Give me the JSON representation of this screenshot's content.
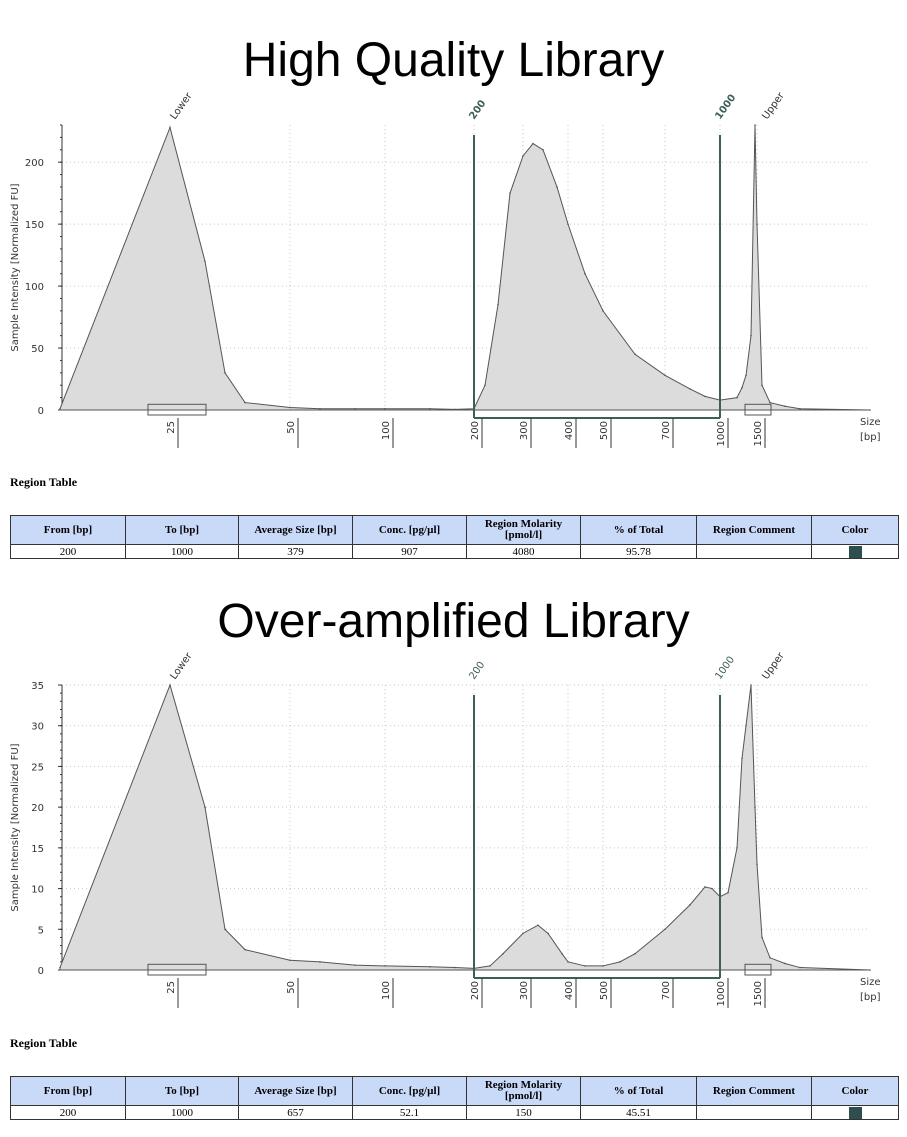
{
  "chart_data": [
    {
      "type": "area",
      "title": "High Quality Library",
      "ylabel": "Sample Intensity [Normalized FU]",
      "xlabel": "Size\n[bp]",
      "x_unit_top": "Size",
      "x_unit_bottom": "[bp]",
      "yticks": [
        0,
        50,
        100,
        150,
        200
      ],
      "ylim": [
        0,
        230
      ],
      "xticks": [
        "25",
        "50",
        "100",
        "200",
        "300",
        "400",
        "500",
        "700",
        "1000",
        "1500"
      ],
      "markers": [
        {
          "label": "Lower",
          "bp": "25"
        },
        {
          "label": "200",
          "bp": "200"
        },
        {
          "label": "1000",
          "bp": "1000"
        },
        {
          "label": "Upper",
          "bp": "1500"
        }
      ],
      "region": {
        "from_bp": 200,
        "to_bp": 1000
      },
      "series": [
        {
          "x": [
            "20",
            "25",
            "30",
            "35",
            "40",
            "50",
            "60",
            "80",
            "100",
            "150",
            "180",
            "200",
            "220",
            "250",
            "270",
            "300",
            "320",
            "340",
            "370",
            "400",
            "450",
            "500",
            "600",
            "700",
            "800",
            "900",
            "1000",
            "1100",
            "1200",
            "1300",
            "1400",
            "1450",
            "1500",
            "1550",
            "1600",
            "1700",
            "1800",
            "2000"
          ],
          "y": [
            1,
            228,
            120,
            30,
            6,
            2,
            1,
            1,
            1,
            1,
            0.5,
            1,
            20,
            85,
            175,
            205,
            215,
            210,
            180,
            150,
            110,
            80,
            45,
            28,
            17,
            11,
            8,
            10,
            18,
            28,
            60,
            230,
            150,
            20,
            6,
            3,
            1,
            0
          ]
        }
      ]
    },
    {
      "type": "area",
      "title": "Over-amplified Library",
      "ylabel": "Sample Intensity [Normalized FU]",
      "xlabel": "Size\n[bp]",
      "x_unit_top": "Size",
      "x_unit_bottom": "[bp]",
      "yticks": [
        0,
        5,
        10,
        15,
        20,
        25,
        30,
        35
      ],
      "ylim": [
        0,
        35
      ],
      "xticks": [
        "25",
        "50",
        "100",
        "200",
        "300",
        "400",
        "500",
        "700",
        "1000",
        "1500"
      ],
      "markers": [
        {
          "label": "Lower",
          "bp": "25"
        },
        {
          "label": "200",
          "bp": "200"
        },
        {
          "label": "1000",
          "bp": "1000"
        },
        {
          "label": "Upper",
          "bp": "1500"
        }
      ],
      "region": {
        "from_bp": 200,
        "to_bp": 1000
      },
      "series": [
        {
          "x": [
            "20",
            "25",
            "30",
            "35",
            "40",
            "50",
            "60",
            "80",
            "100",
            "150",
            "180",
            "200",
            "230",
            "260",
            "300",
            "330",
            "350",
            "380",
            "400",
            "450",
            "500",
            "550",
            "600",
            "700",
            "800",
            "900",
            "950",
            "1000",
            "1050",
            "1100",
            "1200",
            "1300",
            "1400",
            "1450",
            "1500",
            "1550",
            "1600",
            "1700",
            "1800",
            "2000"
          ],
          "y": [
            0.3,
            35,
            20,
            5,
            2.5,
            1.2,
            1,
            0.6,
            0.5,
            0.4,
            0.3,
            0.2,
            0.5,
            2,
            4.5,
            5.5,
            4.5,
            2,
            1,
            0.5,
            0.5,
            1,
            2,
            5,
            8,
            10.2,
            10,
            9,
            9.5,
            15,
            26,
            30,
            35,
            20,
            13,
            4,
            1.5,
            0.8,
            0.3,
            0
          ]
        }
      ]
    }
  ],
  "tables": [
    {
      "label": "Region Table",
      "headers": [
        "From [bp]",
        "To [bp]",
        "Average Size [bp]",
        "Conc. [pg/µl]",
        "Region Molarity [pmol/l]",
        "% of Total",
        "Region Comment",
        "Color"
      ],
      "row": [
        "200",
        "1000",
        "379",
        "907",
        "4080",
        "95.78",
        ""
      ],
      "color": "#2f4f4f"
    },
    {
      "label": "Region Table",
      "headers": [
        "From [bp]",
        "To [bp]",
        "Average Size [bp]",
        "Conc. [pg/µl]",
        "Region Molarity [pmol/l]",
        "% of Total",
        "Region Comment",
        "Color"
      ],
      "row": [
        "200",
        "1000",
        "657",
        "52.1",
        "150",
        "45.51",
        ""
      ],
      "color": "#2f4f4f"
    }
  ],
  "colors": {
    "fill": "#dcdcdc",
    "line": "#555555",
    "marker_line": "#3d5f5a",
    "grid": "#c8c8c8"
  }
}
